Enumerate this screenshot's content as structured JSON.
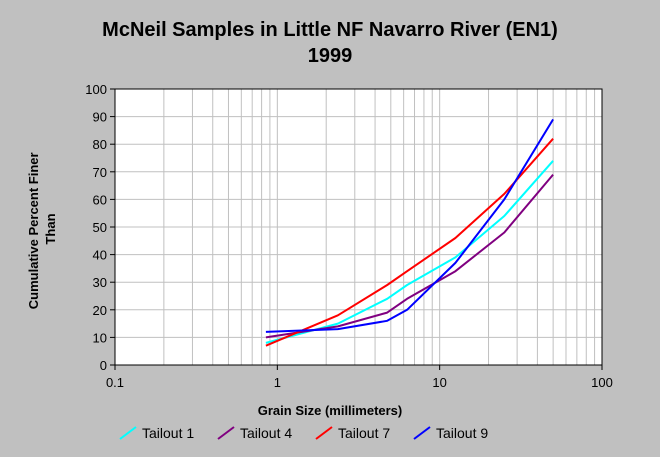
{
  "colors": {
    "background": "#c0c0c0",
    "plot_area": "#ffffff",
    "grid": "#c0c0c0",
    "axis": "#000000"
  },
  "chart_data": {
    "type": "line",
    "title": "McNeil Samples in Little NF Navarro River (EN1)",
    "subtitle": "1999",
    "xlabel": "Grain Size (millimeters)",
    "ylabel": "Cumulative Percent Finer Than",
    "ylabel_lines": [
      "Cumulative Percent Finer",
      "Than"
    ],
    "x_scale": "log",
    "xlim": [
      0.1,
      100
    ],
    "ylim": [
      0,
      100
    ],
    "x_ticks": [
      0.1,
      1,
      10,
      100
    ],
    "x_tick_labels": [
      "0.1",
      "1",
      "10",
      "100"
    ],
    "y_ticks": [
      0,
      10,
      20,
      30,
      40,
      50,
      60,
      70,
      80,
      90,
      100
    ],
    "y_tick_labels": [
      "0",
      "10",
      "20",
      "30",
      "40",
      "50",
      "60",
      "70",
      "80",
      "90",
      "100"
    ],
    "grid": true,
    "legend_position": "bottom",
    "series": [
      {
        "name": "Tailout 1",
        "color": "#00ffff",
        "x": [
          0.85,
          2.36,
          4.75,
          6.3,
          12.5,
          25,
          50
        ],
        "y": [
          8,
          15,
          24,
          29,
          39,
          54,
          74
        ]
      },
      {
        "name": "Tailout 4",
        "color": "#800080",
        "x": [
          0.85,
          2.36,
          4.75,
          6.3,
          12.5,
          25,
          50
        ],
        "y": [
          10,
          14,
          19,
          24,
          34,
          48,
          69
        ]
      },
      {
        "name": "Tailout 7",
        "color": "#ff0000",
        "x": [
          0.85,
          2.36,
          4.75,
          6.3,
          12.5,
          25,
          50
        ],
        "y": [
          7,
          18,
          29,
          34,
          46,
          62,
          82
        ]
      },
      {
        "name": "Tailout 9",
        "color": "#0000ff",
        "x": [
          0.85,
          2.36,
          4.75,
          6.3,
          12.5,
          25,
          50
        ],
        "y": [
          12,
          13,
          16,
          20,
          37,
          60,
          89
        ]
      }
    ]
  }
}
